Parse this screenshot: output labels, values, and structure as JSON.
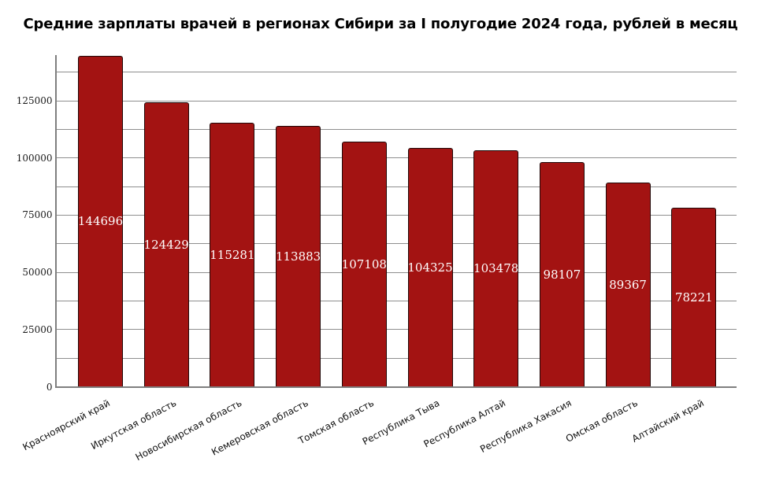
{
  "chart_data": {
    "type": "bar",
    "title": "Средние зарплаты врачей в регионах Сибири за I полугодие 2024 года, рублей в месяц",
    "categories": [
      "Красноярский край",
      "Иркутская область",
      "Новосибирская область",
      "Кемеровская область",
      "Томская область",
      "Республика Тыва",
      "Республика Алтай",
      "Республика Хакасия",
      "Омская область",
      "Алтайский край"
    ],
    "values": [
      144696,
      124429,
      115281,
      113883,
      107108,
      104325,
      103478,
      98107,
      89367,
      78221
    ],
    "xlabel": "",
    "ylabel": "",
    "ylim": [
      0,
      145000
    ],
    "yticks": [
      0,
      25000,
      50000,
      75000,
      100000,
      125000
    ],
    "minor_grid_step": 12500,
    "grid": true,
    "legend": false,
    "bar_value_labels_shown": true,
    "colors": {
      "background": "#FFFFFF",
      "bar_fill": "#A31312",
      "bar_border": "#200808",
      "grid": "#8E8E8E",
      "axis": "#7F7F7F",
      "title_text": "#000000",
      "tick_text": "#1A1A1A",
      "x_label_text": "#111111",
      "value_label_text": "#FFFFFF"
    }
  }
}
